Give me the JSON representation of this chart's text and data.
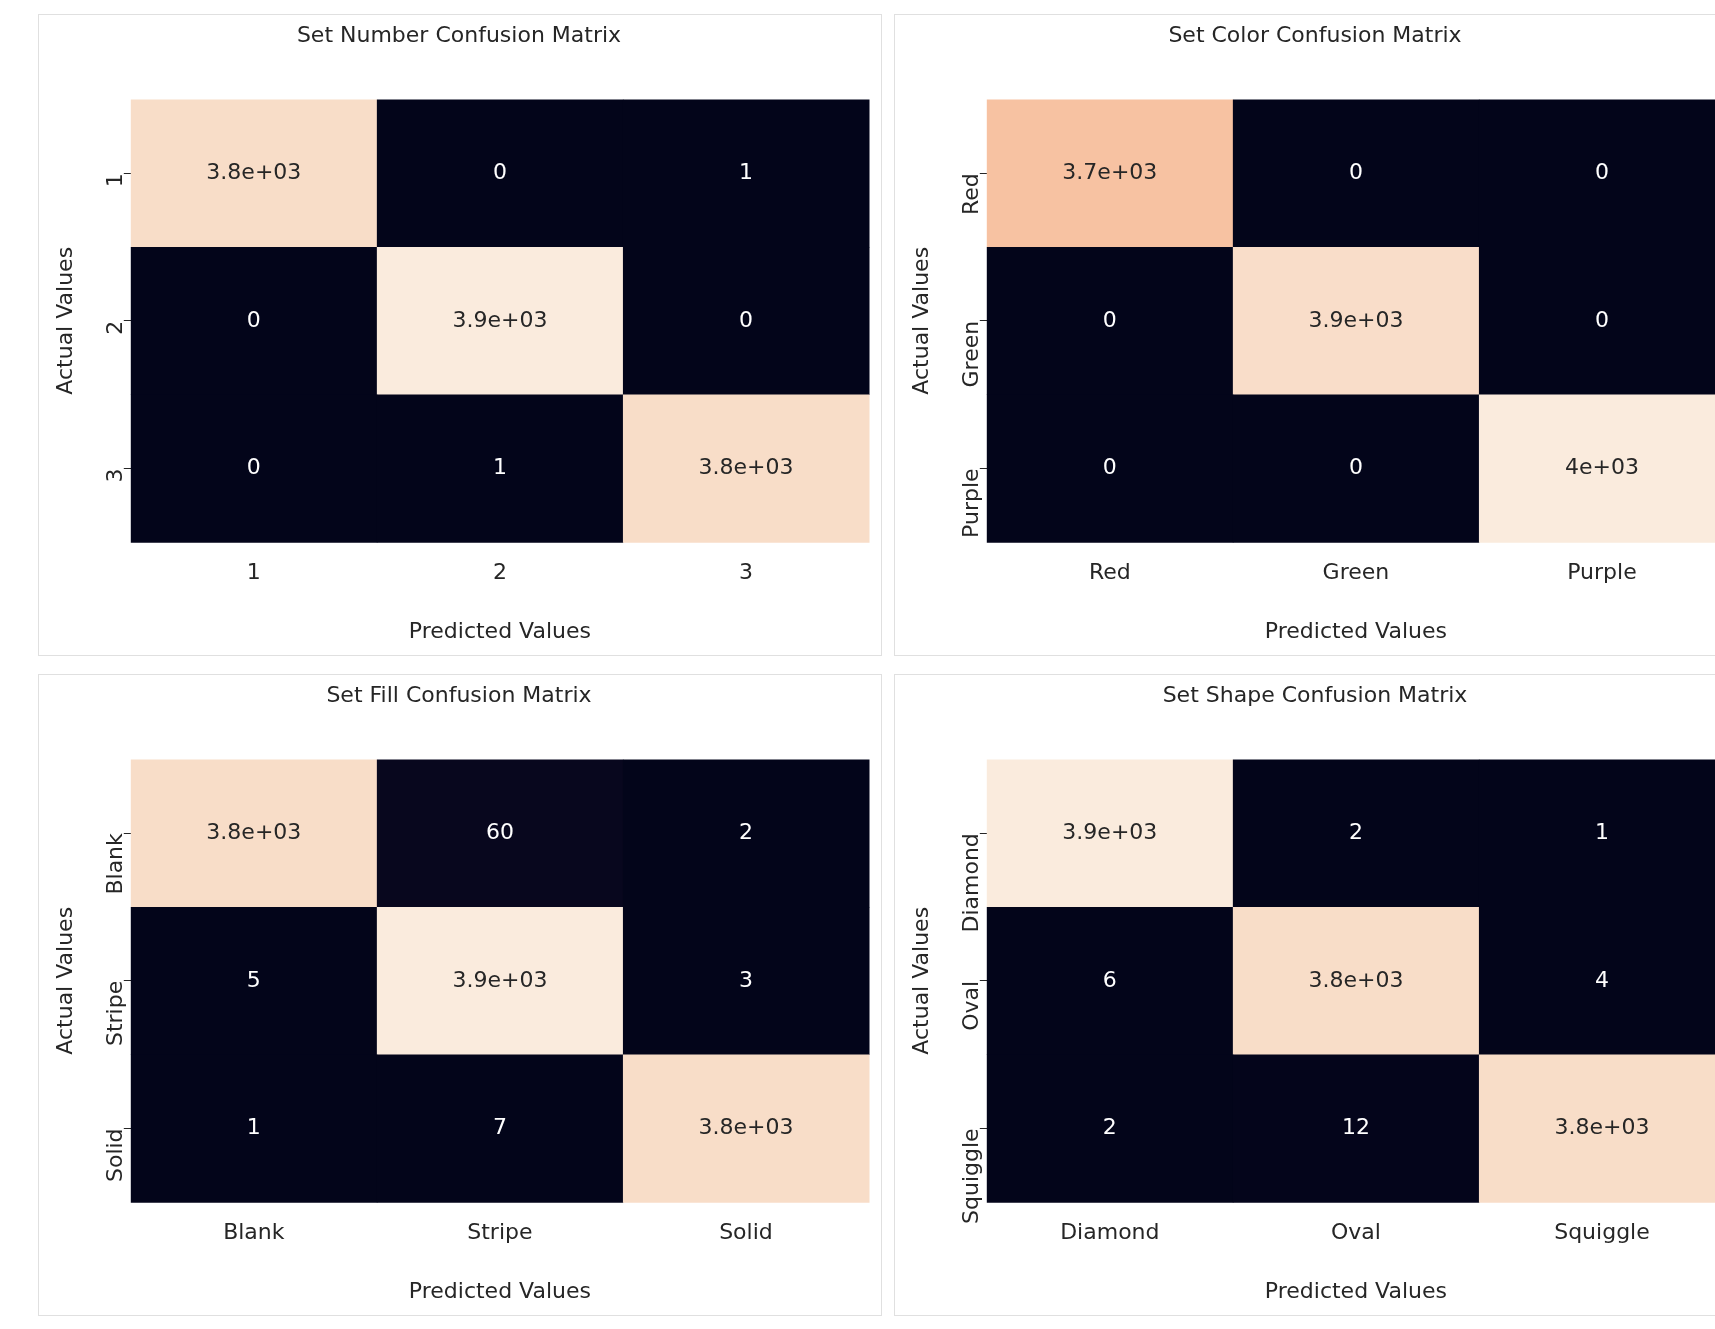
{
  "chart_data": [
    {
      "type": "heatmap",
      "title": "Set Number Confusion Matrix",
      "xlabel": "Predicted Values",
      "ylabel": "Actual Values",
      "categories": [
        "1",
        "2",
        "3"
      ],
      "y_categories": [
        "1",
        "2",
        "3"
      ],
      "cells": [
        [
          3800,
          0,
          1
        ],
        [
          0,
          3900,
          0
        ],
        [
          0,
          1,
          3800
        ]
      ],
      "cell_labels": [
        [
          "3.8e+03",
          "0",
          "1"
        ],
        [
          "0",
          "3.9e+03",
          "0"
        ],
        [
          "0",
          "1",
          "3.8e+03"
        ]
      ]
    },
    {
      "type": "heatmap",
      "title": "Set Color Confusion Matrix",
      "xlabel": "Predicted Values",
      "ylabel": "Actual Values",
      "categories": [
        "Red",
        "Green",
        "Purple"
      ],
      "y_categories": [
        "Red",
        "Green",
        "Purple"
      ],
      "cells": [
        [
          3700,
          0,
          0
        ],
        [
          0,
          3900,
          0
        ],
        [
          0,
          0,
          4000
        ]
      ],
      "cell_labels": [
        [
          "3.7e+03",
          "0",
          "0"
        ],
        [
          "0",
          "3.9e+03",
          "0"
        ],
        [
          "0",
          "0",
          "4e+03"
        ]
      ]
    },
    {
      "type": "heatmap",
      "title": "Set Fill Confusion Matrix",
      "xlabel": "Predicted Values",
      "ylabel": "Actual Values",
      "categories": [
        "Blank",
        "Stripe",
        "Solid"
      ],
      "y_categories": [
        "Blank",
        "Stripe",
        "Solid"
      ],
      "cells": [
        [
          3800,
          60,
          2
        ],
        [
          5,
          3900,
          3
        ],
        [
          1,
          7,
          3800
        ]
      ],
      "cell_labels": [
        [
          "3.8e+03",
          "60",
          "2"
        ],
        [
          "5",
          "3.9e+03",
          "3"
        ],
        [
          "1",
          "7",
          "3.8e+03"
        ]
      ]
    },
    {
      "type": "heatmap",
      "title": "Set Shape Confusion Matrix",
      "xlabel": "Predicted Values",
      "ylabel": "Actual Values",
      "categories": [
        "Diamond",
        "Oval",
        "Squiggle"
      ],
      "y_categories": [
        "Diamond",
        "Oval",
        "Squiggle"
      ],
      "cells": [
        [
          3900,
          2,
          1
        ],
        [
          6,
          3800,
          4
        ],
        [
          2,
          12,
          3800
        ]
      ],
      "cell_labels": [
        [
          "3.9e+03",
          "2",
          "1"
        ],
        [
          "6",
          "3.8e+03",
          "4"
        ],
        [
          "2",
          "12",
          "3.8e+03"
        ]
      ]
    }
  ]
}
